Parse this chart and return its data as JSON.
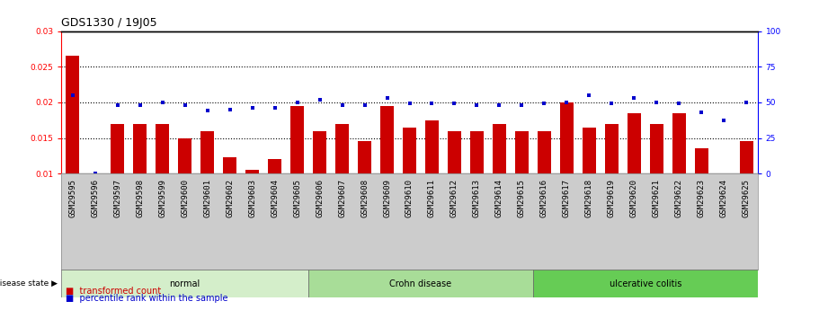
{
  "title": "GDS1330 / 19J05",
  "samples": [
    "GSM29595",
    "GSM29596",
    "GSM29597",
    "GSM29598",
    "GSM29599",
    "GSM29600",
    "GSM29601",
    "GSM29602",
    "GSM29603",
    "GSM29604",
    "GSM29605",
    "GSM29606",
    "GSM29607",
    "GSM29608",
    "GSM29609",
    "GSM29610",
    "GSM29611",
    "GSM29612",
    "GSM29613",
    "GSM29614",
    "GSM29615",
    "GSM29616",
    "GSM29617",
    "GSM29618",
    "GSM29619",
    "GSM29620",
    "GSM29621",
    "GSM29622",
    "GSM29623",
    "GSM29624",
    "GSM29625"
  ],
  "bar_values": [
    0.0265,
    0.01,
    0.017,
    0.017,
    0.017,
    0.015,
    0.016,
    0.0123,
    0.0105,
    0.012,
    0.0195,
    0.016,
    0.017,
    0.0145,
    0.0195,
    0.0165,
    0.0175,
    0.016,
    0.016,
    0.017,
    0.016,
    0.016,
    0.02,
    0.0165,
    0.017,
    0.0185,
    0.017,
    0.0185,
    0.0135,
    0.01,
    0.0145
  ],
  "percentile_values": [
    55,
    0,
    48,
    48,
    50,
    48,
    44,
    45,
    46,
    46,
    50,
    52,
    48,
    48,
    53,
    49,
    49,
    49,
    48,
    48,
    48,
    49,
    50,
    55,
    49,
    53,
    50,
    49,
    43,
    37,
    50
  ],
  "groups": [
    {
      "label": "normal",
      "start": 0,
      "end": 10,
      "color": "#d4eeca"
    },
    {
      "label": "Crohn disease",
      "start": 11,
      "end": 20,
      "color": "#a8dd98"
    },
    {
      "label": "ulcerative colitis",
      "start": 21,
      "end": 30,
      "color": "#66cc55"
    }
  ],
  "bar_color": "#cc0000",
  "dot_color": "#0000cc",
  "ylim_left": [
    0.01,
    0.03
  ],
  "ylim_right": [
    0,
    100
  ],
  "yticks_left": [
    0.01,
    0.015,
    0.02,
    0.025,
    0.03
  ],
  "yticks_right": [
    0,
    25,
    50,
    75,
    100
  ],
  "background_color": "#ffffff",
  "xtick_bg_color": "#cccccc",
  "title_fontsize": 9,
  "tick_fontsize": 6.5,
  "label_fontsize": 8
}
